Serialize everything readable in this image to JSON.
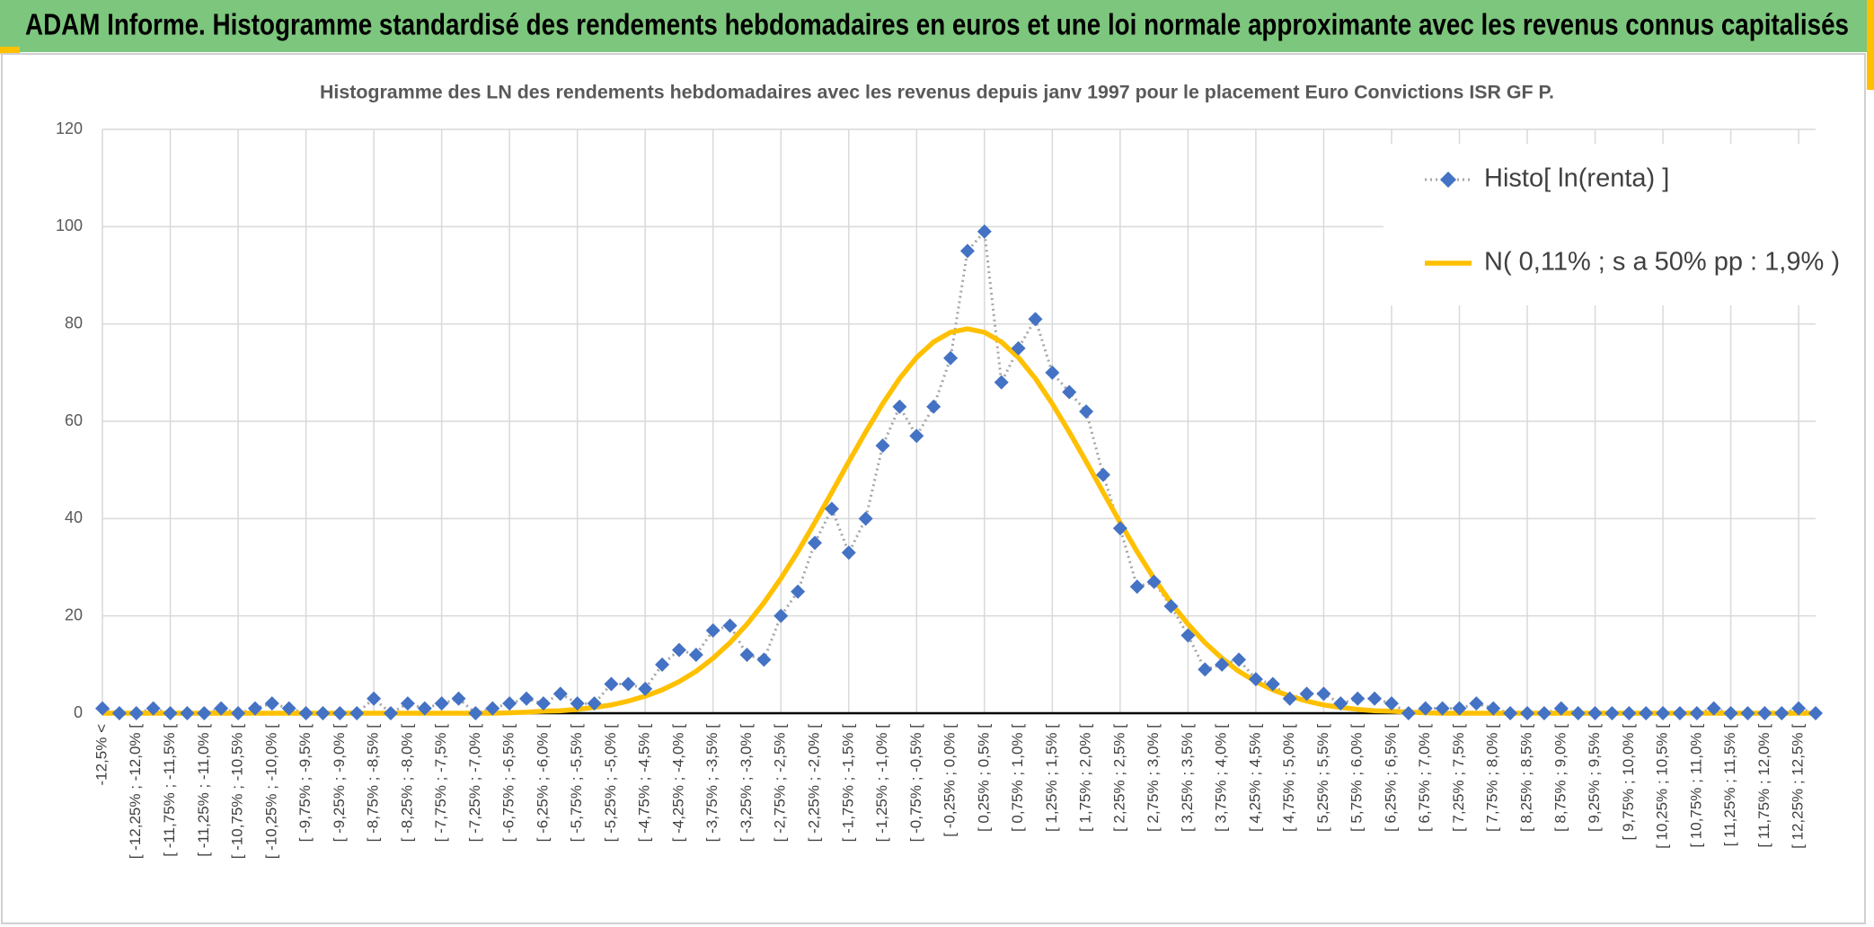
{
  "header": {
    "title": "ADAM Informe. Histogramme standardisé des rendements hebdomadaires en euros et une loi normale approximante avec les revenus connus capitalisés"
  },
  "chart_data": {
    "type": "line",
    "title": "Histogramme des LN des rendements hebdomadaires avec les revenus depuis janv 1997 pour le placement Euro Convictions ISR GF P.",
    "categories": [
      "-12,5% <",
      null,
      "[ -12,25% ; -12,0% [",
      null,
      "[ -11,75% ; -11,5% [",
      null,
      "[ -11,25% ; -11,0% [",
      null,
      "[ -10,75% ; -10,5% [",
      null,
      "[ -10,25% ; -10,0% [",
      null,
      "[ -9,75% ; -9,5% [",
      null,
      "[ -9,25% ; -9,0% [",
      null,
      "[ -8,75% ; -8,5% [",
      null,
      "[ -8,25% ; -8,0% [",
      null,
      "[ -7,75% ; -7,5% [",
      null,
      "[ -7,25% ; -7,0% [",
      null,
      "[ -6,75% ; -6,5% [",
      null,
      "[ -6,25% ; -6,0% [",
      null,
      "[ -5,75% ; -5,5% [",
      null,
      "[ -5,25% ; -5,0% [",
      null,
      "[ -4,75% ; -4,5% [",
      null,
      "[ -4,25% ; -4,0% [",
      null,
      "[ -3,75% ; -3,5% [",
      null,
      "[ -3,25% ; -3,0% [",
      null,
      "[ -2,75% ; -2,5% [",
      null,
      "[ -2,25% ; -2,0% [",
      null,
      "[ -1,75% ; -1,5% [",
      null,
      "[ -1,25% ; -1,0% [",
      null,
      "[ -0,75% ; -0,5% [",
      null,
      "[ -0,25% ; 0,0% [",
      null,
      "[ 0,25% ; 0,5% [",
      null,
      "[ 0,75% ; 1,0% [",
      null,
      "[ 1,25% ; 1,5% [",
      null,
      "[ 1,75% ; 2,0% [",
      null,
      "[ 2,25% ; 2,5% [",
      null,
      "[ 2,75% ; 3,0% [",
      null,
      "[ 3,25% ; 3,5% [",
      null,
      "[ 3,75% ; 4,0% [",
      null,
      "[ 4,25% ; 4,5% [",
      null,
      "[ 4,75% ; 5,0% [",
      null,
      "[ 5,25% ; 5,5% [",
      null,
      "[ 5,75% ; 6,0% [",
      null,
      "[ 6,25% ; 6,5% [",
      null,
      "[ 6,75% ; 7,0% [",
      null,
      "[ 7,25% ; 7,5% [",
      null,
      "[ 7,75% ; 8,0% [",
      null,
      "[ 8,25% ; 8,5% [",
      null,
      "[ 8,75% ; 9,0% [",
      null,
      "[ 9,25% ; 9,5% [",
      null,
      "[ 9,75% ; 10,0% [",
      null,
      "[ 10,25% ; 10,5% [",
      null,
      "[ 10,75% ; 11,0% [",
      null,
      "[ 11,25% ; 11,5% [",
      null,
      "[ 11,75% ; 12,0% [",
      null,
      "[ 12,25% ; 12,5% [",
      null
    ],
    "series": [
      {
        "name": "Histo[ ln(renta) ]",
        "color": "#4472c4",
        "line_color": "#a5a5a5",
        "values": [
          1,
          0,
          0,
          1,
          0,
          0,
          0,
          1,
          0,
          1,
          2,
          1,
          0,
          0,
          0,
          0,
          3,
          0,
          2,
          1,
          2,
          3,
          0,
          1,
          2,
          3,
          2,
          4,
          2,
          2,
          6,
          6,
          5,
          10,
          13,
          12,
          17,
          18,
          12,
          11,
          20,
          25,
          35,
          42,
          33,
          40,
          55,
          63,
          57,
          63,
          73,
          95,
          99,
          68,
          75,
          81,
          70,
          66,
          62,
          49,
          38,
          26,
          27,
          22,
          16,
          9,
          10,
          11,
          7,
          6,
          3,
          4,
          4,
          2,
          3,
          3,
          2,
          0,
          1,
          1,
          1,
          2,
          1,
          0,
          0,
          0,
          1,
          0,
          0,
          0,
          0,
          0,
          0,
          0,
          0,
          1,
          0,
          0,
          0,
          0,
          1,
          0
        ]
      },
      {
        "name": "N( 0,11% ; s a 50% pp : 1,9% )",
        "color": "#ffc000",
        "values": [
          0,
          0,
          0,
          0,
          0,
          0,
          0,
          0,
          0,
          0,
          0,
          0,
          0,
          0,
          0,
          0,
          0,
          0,
          0,
          0,
          0,
          0,
          0,
          0,
          0.1,
          0.2,
          0.4,
          0.5,
          0.8,
          1.2,
          1.7,
          2.5,
          3.5,
          4.8,
          6.5,
          8.6,
          11.3,
          14.5,
          18.3,
          22.7,
          27.7,
          33.2,
          39.2,
          45.4,
          51.7,
          57.8,
          63.6,
          68.8,
          73.1,
          76.3,
          78.3,
          79,
          78.3,
          76.3,
          73.1,
          68.8,
          63.6,
          57.8,
          51.7,
          45.4,
          39.2,
          33.2,
          27.7,
          22.7,
          18.3,
          14.5,
          11.3,
          8.6,
          6.5,
          4.8,
          3.5,
          2.5,
          1.7,
          1.2,
          0.8,
          0.5,
          0.4,
          0.2,
          0.1,
          0,
          0,
          0,
          0,
          0,
          0,
          0,
          0,
          0,
          0,
          0,
          0,
          0,
          0,
          0,
          0,
          0,
          0,
          0,
          0,
          0,
          0,
          0
        ]
      }
    ],
    "ylim": [
      0,
      120
    ],
    "yticks": [
      0,
      20,
      40,
      60,
      80,
      100,
      120
    ],
    "grid": true,
    "legend": "top-right"
  }
}
